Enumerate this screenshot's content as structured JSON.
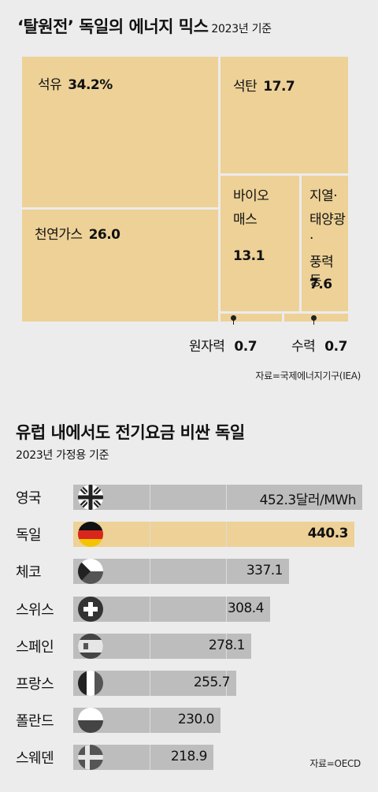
{
  "chart1": {
    "title": "‘탈원전’ 독일의 에너지 믹스",
    "subtitle": "2023년 기준",
    "source": "자료=국제에너지기구(IEA)",
    "chart_data": {
      "type": "treemap",
      "unit": "%",
      "items": [
        {
          "label": "석유",
          "value": 34.2,
          "value_text": "34.2%"
        },
        {
          "label": "석탄",
          "value": 17.7,
          "value_text": "17.7"
        },
        {
          "label": "천연가스",
          "value": 26.0,
          "value_text": "26.0"
        },
        {
          "label": "바이오 매스",
          "label_lines": [
            "바이오",
            "매스"
          ],
          "value": 13.1,
          "value_text": "13.1"
        },
        {
          "label": "지열· 태양광· 풍력 등",
          "label_lines": [
            "지열·",
            "태양광·",
            "풍력 등"
          ],
          "value": 7.6,
          "value_text": "7.6"
        },
        {
          "label": "원자력",
          "value": 0.7,
          "value_text": "0.7"
        },
        {
          "label": "수력",
          "value": 0.7,
          "value_text": "0.7"
        }
      ]
    }
  },
  "chart2": {
    "title": "유럽 내에서도 전기요금 비싼 독일",
    "subtitle": "2023년 가정용 기준",
    "source": "자료=OECD",
    "chart_data": {
      "type": "bar",
      "orientation": "horizontal",
      "unit": "달러/MWh",
      "categories": [
        "영국",
        "독일",
        "체코",
        "스위스",
        "스페인",
        "프랑스",
        "폴란드",
        "스웨덴"
      ],
      "values": [
        452.3,
        440.3,
        337.1,
        308.4,
        278.1,
        255.7,
        230.0,
        218.9
      ],
      "value_labels": [
        "452.3달러/MWh",
        "440.3",
        "337.1",
        "308.4",
        "278.1",
        "255.7",
        "230.0",
        "218.9"
      ],
      "highlight": "독일",
      "colors": {
        "bar": "#bdbdbd",
        "highlight": "#edd197"
      },
      "flags": [
        "uk-flag-icon",
        "germany-flag-icon",
        "czech-flag-icon",
        "switzerland-flag-icon",
        "spain-flag-icon",
        "france-flag-icon",
        "poland-flag-icon",
        "sweden-flag-icon"
      ]
    }
  }
}
